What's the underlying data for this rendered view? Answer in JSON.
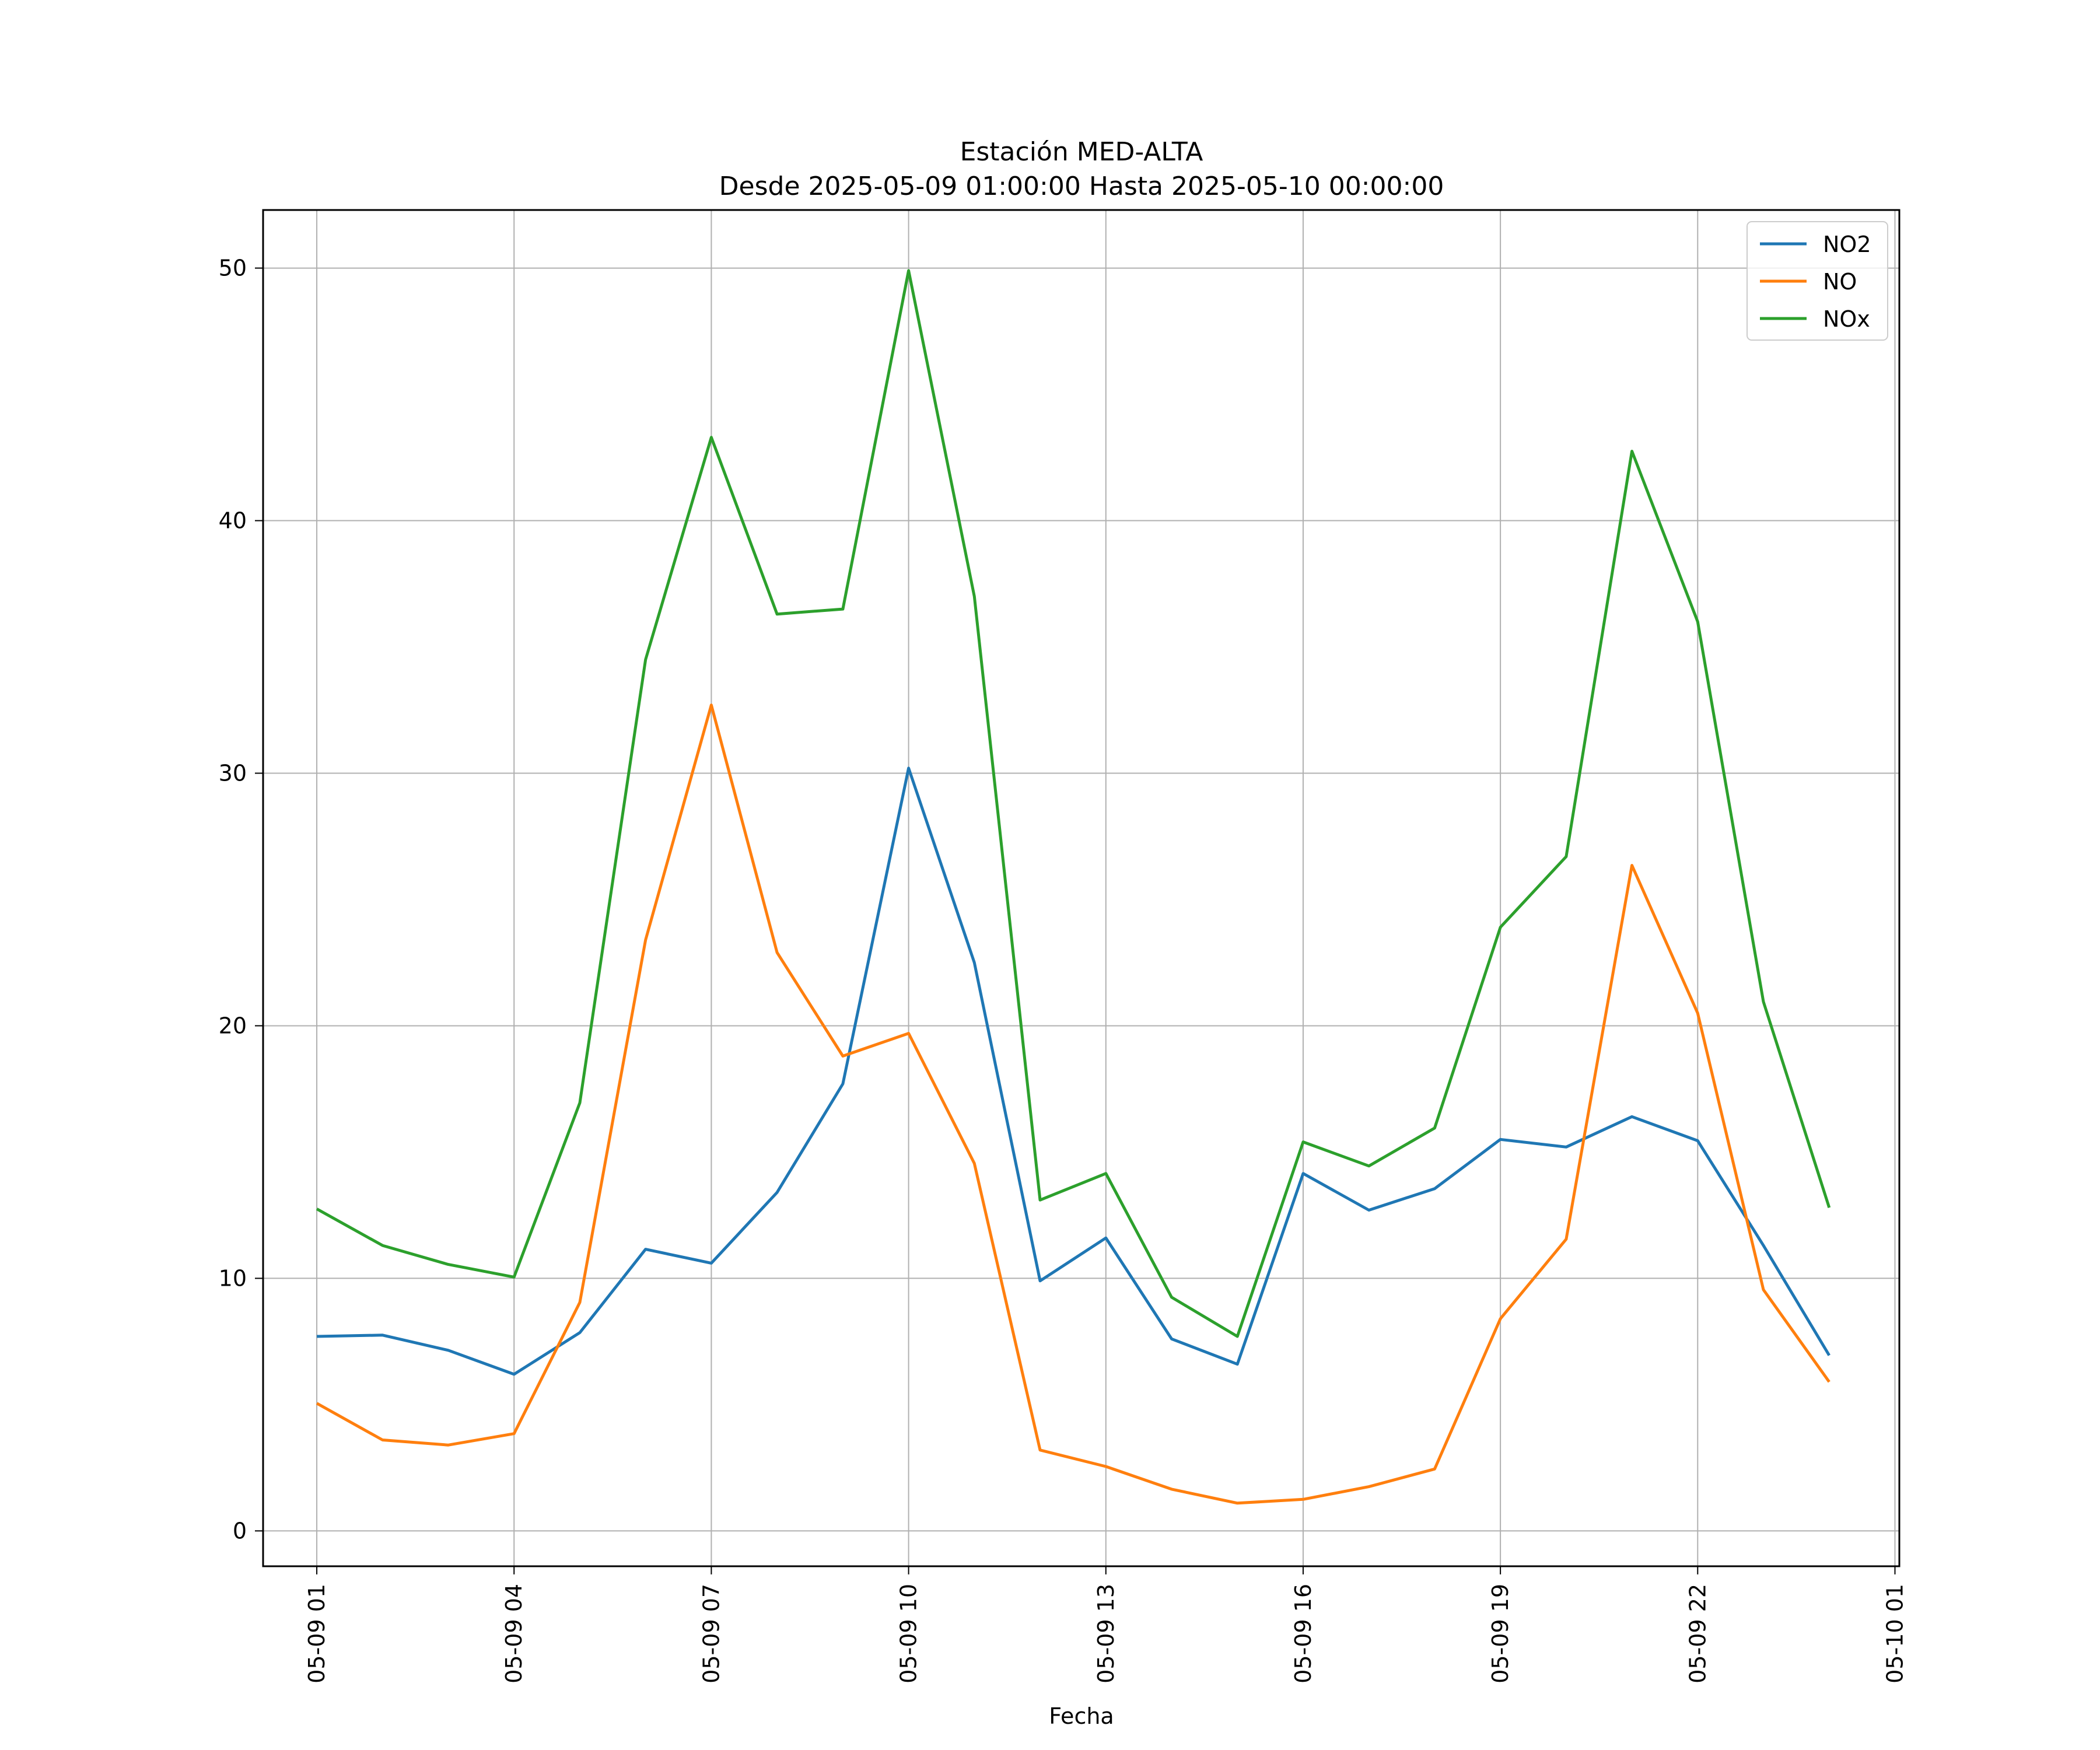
{
  "chart_data": {
    "type": "line",
    "title": "Estación MED-ALTA",
    "subtitle": "Desde 2025-05-09 01:00:00 Hasta 2025-05-10 00:00:00",
    "xlabel": "Fecha",
    "ylabel": "",
    "x": [
      "2025-05-09 01:00",
      "2025-05-09 02:00",
      "2025-05-09 03:00",
      "2025-05-09 04:00",
      "2025-05-09 05:00",
      "2025-05-09 06:00",
      "2025-05-09 07:00",
      "2025-05-09 08:00",
      "2025-05-09 09:00",
      "2025-05-09 10:00",
      "2025-05-09 11:00",
      "2025-05-09 12:00",
      "2025-05-09 13:00",
      "2025-05-09 14:00",
      "2025-05-09 15:00",
      "2025-05-09 16:00",
      "2025-05-09 17:00",
      "2025-05-09 18:00",
      "2025-05-09 19:00",
      "2025-05-09 20:00",
      "2025-05-09 21:00",
      "2025-05-09 22:00",
      "2025-05-09 23:00",
      "2025-05-10 00:00"
    ],
    "x_ticks": [
      {
        "x": "2025-05-09 01:00",
        "label": "05-09 01"
      },
      {
        "x": "2025-05-09 04:00",
        "label": "05-09 04"
      },
      {
        "x": "2025-05-09 07:00",
        "label": "05-09 07"
      },
      {
        "x": "2025-05-09 10:00",
        "label": "05-09 10"
      },
      {
        "x": "2025-05-09 13:00",
        "label": "05-09 13"
      },
      {
        "x": "2025-05-09 16:00",
        "label": "05-09 16"
      },
      {
        "x": "2025-05-09 19:00",
        "label": "05-09 19"
      },
      {
        "x": "2025-05-09 22:00",
        "label": "05-09 22"
      },
      {
        "x": "2025-05-10 01:00",
        "label": "05-10 01"
      }
    ],
    "xlim": [
      "2025-05-09 00:11",
      "2025-05-10 01:04"
    ],
    "y_ticks": [
      0,
      10,
      20,
      30,
      40,
      50
    ],
    "ylim": [
      -1.4,
      52.3
    ],
    "grid": true,
    "legend_position": "top-right",
    "series": [
      {
        "name": "NO2",
        "color": "#1f77b4",
        "values": [
          7.7,
          7.75,
          7.15,
          6.2,
          7.85,
          11.15,
          10.6,
          13.4,
          17.7,
          30.2,
          22.5,
          9.9,
          11.6,
          7.6,
          6.6,
          14.15,
          12.7,
          13.55,
          15.5,
          15.2,
          16.4,
          15.45,
          11.3,
          6.95
        ]
      },
      {
        "name": "NO",
        "color": "#ff7f0e",
        "values": [
          5.05,
          3.6,
          3.4,
          3.85,
          9.05,
          23.4,
          32.7,
          22.9,
          18.8,
          19.7,
          14.55,
          3.2,
          2.55,
          1.65,
          1.1,
          1.25,
          1.75,
          2.45,
          8.4,
          11.55,
          26.35,
          20.5,
          9.55,
          5.9
        ]
      },
      {
        "name": "NOx",
        "color": "#2ca02c",
        "values": [
          12.75,
          11.3,
          10.55,
          10.05,
          16.95,
          34.5,
          43.3,
          36.3,
          36.5,
          49.9,
          37.0,
          13.1,
          14.15,
          9.25,
          7.7,
          15.4,
          14.45,
          15.95,
          23.9,
          26.7,
          42.75,
          36.0,
          20.95,
          12.8
        ]
      }
    ]
  }
}
